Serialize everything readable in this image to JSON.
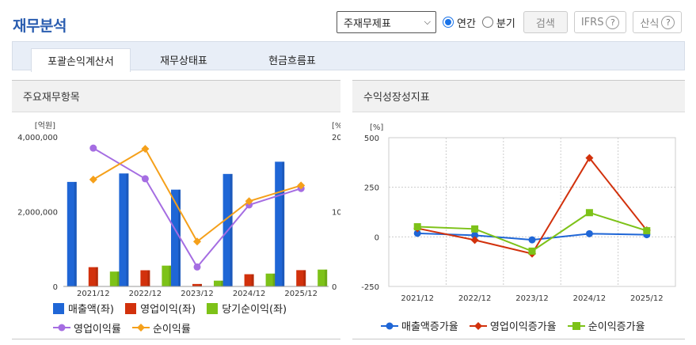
{
  "page": {
    "title": "재무분석"
  },
  "controls": {
    "report_select": "주재무제표",
    "period_annual": "연간",
    "period_quarter": "분기",
    "search_button": "검색",
    "ifrs_button": "IFRS",
    "formula_button": "산식",
    "help_glyph": "?"
  },
  "tabs": [
    {
      "label": "포괄손익계산서",
      "active": true
    },
    {
      "label": "재무상태표",
      "active": false
    },
    {
      "label": "현금흐름표",
      "active": false
    }
  ],
  "left_panel": {
    "title": "주요재무항목"
  },
  "right_panel": {
    "title": "수익성장성지표"
  },
  "chart_data": [
    {
      "type": "bar",
      "title": "주요재무항목",
      "categories": [
        "2021/12",
        "2022/12",
        "2023/12",
        "2024/12",
        "2025/12"
      ],
      "y_left": {
        "unit": "[억원]",
        "ylim": [
          0,
          4000000
        ],
        "ticks": [
          "0",
          "2,000,000",
          "4,000,000"
        ]
      },
      "y_right": {
        "unit": "[%]",
        "ylim": [
          0,
          20
        ],
        "ticks": [
          "0",
          "10",
          "20"
        ]
      },
      "series": [
        {
          "name": "매출액(좌)",
          "type": "bar",
          "axis": "left",
          "color": "#1f66d6",
          "values": [
            2796000,
            3022000,
            2589000,
            3009000,
            3336000
          ]
        },
        {
          "name": "영업이익(좌)",
          "type": "bar",
          "axis": "left",
          "color": "#d2310c",
          "values": [
            516000,
            433000,
            66000,
            327000,
            436000
          ]
        },
        {
          "name": "당기순이익(좌)",
          "type": "bar",
          "axis": "left",
          "color": "#7dc218",
          "values": [
            398000,
            557000,
            155000,
            344000,
            451000
          ]
        },
        {
          "name": "영업이익률",
          "type": "line",
          "axis": "right",
          "color": "#a56de2",
          "values": [
            18.5,
            14.4,
            2.6,
            10.9,
            13.1
          ]
        },
        {
          "name": "순이익률",
          "type": "line",
          "axis": "right",
          "color": "#f5a01a",
          "values": [
            14.3,
            18.4,
            6.0,
            11.4,
            13.5
          ]
        }
      ],
      "legend": "bottom"
    },
    {
      "type": "line",
      "title": "수익성장성지표",
      "categories": [
        "2021/12",
        "2022/12",
        "2023/12",
        "2024/12",
        "2025/12"
      ],
      "y": {
        "unit": "[%]",
        "ylim": [
          -250,
          500
        ],
        "ticks": [
          "-250",
          "0",
          "250",
          "500"
        ]
      },
      "series": [
        {
          "name": "매출액증가율",
          "color": "#1f66d6",
          "marker": "circle",
          "values": [
            18,
            8,
            -15,
            16,
            11
          ]
        },
        {
          "name": "영업이익증가율",
          "color": "#d2310c",
          "marker": "diamond",
          "values": [
            43,
            -16,
            -85,
            398,
            33
          ]
        },
        {
          "name": "순이익증가율",
          "color": "#7dc218",
          "marker": "square",
          "values": [
            51,
            40,
            -72,
            122,
            31
          ]
        }
      ],
      "legend": "bottom"
    }
  ]
}
